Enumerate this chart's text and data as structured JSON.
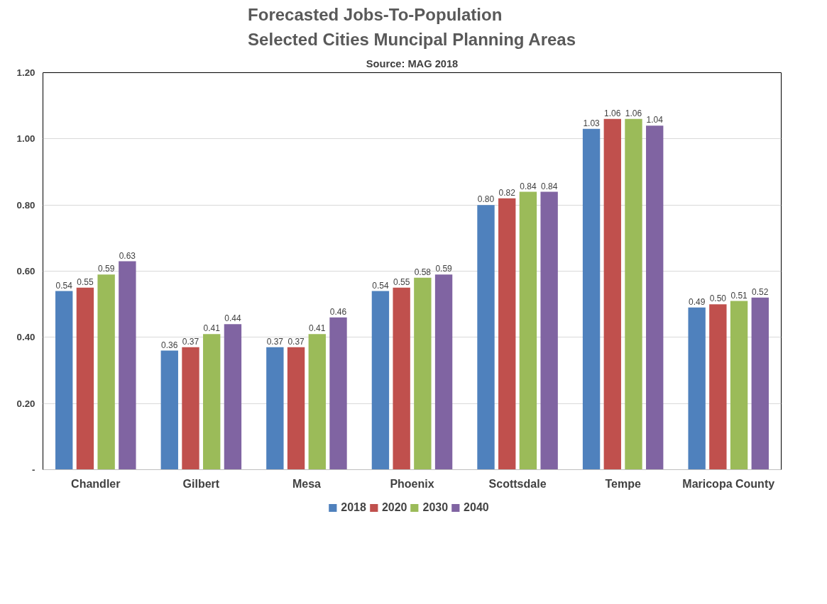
{
  "chart_data": {
    "type": "bar",
    "title": "Forecasted Jobs-To-Population\nSelected Cities Muncipal Planning Areas",
    "subtitle": "Source: MAG 2018",
    "categories": [
      "Chandler",
      "Gilbert",
      "Mesa",
      "Phoenix",
      "Scottsdale",
      "Tempe",
      "Maricopa County"
    ],
    "series": [
      {
        "name": "2018",
        "color": "#4f81bd",
        "values": [
          0.54,
          0.36,
          0.37,
          0.54,
          0.8,
          1.03,
          0.49
        ],
        "value_labels": [
          "0.54",
          "0.36",
          "0.37",
          "0.54",
          "0.80",
          "1.03",
          "0.49"
        ]
      },
      {
        "name": "2020",
        "color": "#c0504d",
        "values": [
          0.55,
          0.37,
          0.37,
          0.55,
          0.82,
          1.06,
          0.5
        ],
        "value_labels": [
          "0.55",
          "0.37",
          "0.37",
          "0.55",
          "0.82",
          "1.06",
          "0.50"
        ]
      },
      {
        "name": "2030",
        "color": "#9bbb59",
        "values": [
          0.59,
          0.41,
          0.41,
          0.58,
          0.84,
          1.06,
          0.51
        ],
        "value_labels": [
          "0.59",
          "0.41",
          "0.41",
          "0.58",
          "0.84",
          "1.06",
          "0.51"
        ]
      },
      {
        "name": "2040",
        "color": "#8064a2",
        "values": [
          0.63,
          0.44,
          0.46,
          0.59,
          0.84,
          1.04,
          0.52
        ],
        "value_labels": [
          "0.63",
          "0.44",
          "0.46",
          "0.59",
          "0.84",
          "1.04",
          "0.52"
        ]
      }
    ],
    "ylim": [
      0,
      1.2
    ],
    "yticks": [
      {
        "value": 0,
        "label": "-"
      },
      {
        "value": 0.2,
        "label": "0.20"
      },
      {
        "value": 0.4,
        "label": "0.40"
      },
      {
        "value": 0.6,
        "label": "0.60"
      },
      {
        "value": 0.8,
        "label": "0.80"
      },
      {
        "value": 1.0,
        "label": "1.00"
      },
      {
        "value": 1.2,
        "label": "1.20"
      }
    ],
    "grid": "y",
    "legend": "bottom"
  }
}
